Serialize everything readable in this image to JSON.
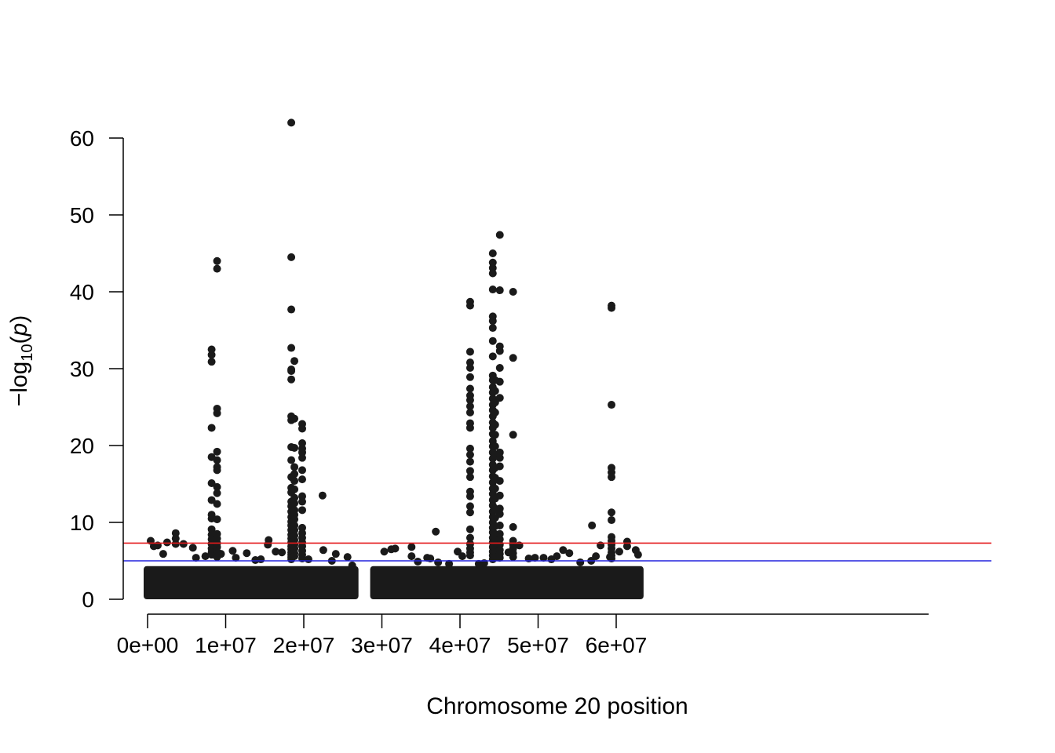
{
  "chart_data": {
    "type": "scatter",
    "xlabel": "Chromosome 20 position",
    "ylabel_main": "−log",
    "ylabel_sub": "10",
    "ylabel_open": "(",
    "ylabel_var": "p",
    "ylabel_close": ")",
    "xlim": [
      -1900000,
      64800000
    ],
    "ylim": [
      0,
      62
    ],
    "x_ticks": [
      {
        "value": 0,
        "label": "0e+00"
      },
      {
        "value": 10000000,
        "label": "1e+07"
      },
      {
        "value": 20000000,
        "label": "2e+07"
      },
      {
        "value": 30000000,
        "label": "3e+07"
      },
      {
        "value": 40000000,
        "label": "4e+07"
      },
      {
        "value": 50000000,
        "label": "5e+07"
      },
      {
        "value": 60000000,
        "label": "6e+07"
      }
    ],
    "y_ticks": [
      {
        "value": 0,
        "label": "0"
      },
      {
        "value": 10,
        "label": "10"
      },
      {
        "value": 20,
        "label": "20"
      },
      {
        "value": 30,
        "label": "30"
      },
      {
        "value": 40,
        "label": "40"
      },
      {
        "value": 50,
        "label": "50"
      },
      {
        "value": 60,
        "label": "60"
      }
    ],
    "threshold_lines": [
      {
        "y": 7.3,
        "color": "#e41a1c"
      },
      {
        "y": 5.0,
        "color": "#2222dd"
      }
    ],
    "point_color": "#1a1a1a",
    "grid": false,
    "background_band": {
      "segments": [
        [
          0,
          26500000
        ],
        [
          29000000,
          63000000
        ]
      ],
      "max_y": 3.8
    },
    "background_noise": [
      {
        "x": 3600000,
        "y": 8.6
      },
      {
        "x": 3600000,
        "y": 7.9
      },
      {
        "x": 3600000,
        "y": 7.2
      },
      {
        "x": 400000,
        "y": 7.6
      },
      {
        "x": 800000,
        "y": 6.9
      },
      {
        "x": 1300000,
        "y": 7.0
      },
      {
        "x": 2500000,
        "y": 7.4
      },
      {
        "x": 4600000,
        "y": 7.2
      },
      {
        "x": 5800000,
        "y": 6.7
      },
      {
        "x": 10900000,
        "y": 6.3
      },
      {
        "x": 12700000,
        "y": 6.0
      },
      {
        "x": 15500000,
        "y": 7.7
      },
      {
        "x": 15400000,
        "y": 7.1
      },
      {
        "x": 16400000,
        "y": 6.2
      },
      {
        "x": 17200000,
        "y": 6.1
      },
      {
        "x": 22500000,
        "y": 6.4
      },
      {
        "x": 24100000,
        "y": 5.9
      },
      {
        "x": 25600000,
        "y": 5.5
      },
      {
        "x": 30300000,
        "y": 6.2
      },
      {
        "x": 31200000,
        "y": 6.5
      },
      {
        "x": 31700000,
        "y": 6.6
      },
      {
        "x": 33800000,
        "y": 6.8
      },
      {
        "x": 33800000,
        "y": 5.6
      },
      {
        "x": 35800000,
        "y": 5.4
      },
      {
        "x": 36200000,
        "y": 5.3
      },
      {
        "x": 37200000,
        "y": 4.8
      },
      {
        "x": 39700000,
        "y": 6.2
      },
      {
        "x": 43100000,
        "y": 4.7
      },
      {
        "x": 47600000,
        "y": 7.0
      },
      {
        "x": 48800000,
        "y": 5.3
      },
      {
        "x": 50700000,
        "y": 5.4
      },
      {
        "x": 52400000,
        "y": 5.6
      },
      {
        "x": 53200000,
        "y": 6.4
      },
      {
        "x": 54000000,
        "y": 6.0
      },
      {
        "x": 55400000,
        "y": 4.8
      },
      {
        "x": 56800000,
        "y": 5.0
      },
      {
        "x": 57400000,
        "y": 5.6
      },
      {
        "x": 58000000,
        "y": 7.0
      },
      {
        "x": 61400000,
        "y": 7.5
      },
      {
        "x": 61400000,
        "y": 6.9
      },
      {
        "x": 62500000,
        "y": 6.4
      },
      {
        "x": 62800000,
        "y": 5.8
      },
      {
        "x": 2000000,
        "y": 5.9
      },
      {
        "x": 6200000,
        "y": 5.4
      },
      {
        "x": 7400000,
        "y": 5.6
      },
      {
        "x": 9400000,
        "y": 5.9
      },
      {
        "x": 11300000,
        "y": 5.4
      },
      {
        "x": 13800000,
        "y": 5.1
      },
      {
        "x": 14500000,
        "y": 5.2
      },
      {
        "x": 20600000,
        "y": 5.2
      },
      {
        "x": 23600000,
        "y": 5.0
      },
      {
        "x": 26200000,
        "y": 4.4
      },
      {
        "x": 34600000,
        "y": 4.9
      },
      {
        "x": 38600000,
        "y": 4.6
      },
      {
        "x": 40300000,
        "y": 5.6
      },
      {
        "x": 42400000,
        "y": 4.6
      },
      {
        "x": 46200000,
        "y": 6.1
      },
      {
        "x": 49600000,
        "y": 5.4
      },
      {
        "x": 51700000,
        "y": 5.2
      },
      {
        "x": 59200000,
        "y": 5.5
      },
      {
        "x": 60400000,
        "y": 6.2
      }
    ],
    "singletons": [
      {
        "x": 22400000,
        "y": 13.5
      },
      {
        "x": 36900000,
        "y": 8.8
      },
      {
        "x": 56900000,
        "y": 9.6
      }
    ],
    "peaks": [
      {
        "x": 8200000,
        "values": [
          32.5,
          31.8,
          30.9,
          22.3,
          18.5,
          15.1,
          12.9,
          11.0,
          10.5,
          9.1,
          8.4,
          7.8,
          7.2,
          6.6,
          6.1,
          5.8
        ]
      },
      {
        "x": 8900000,
        "values": [
          44.0,
          43.0,
          24.8,
          24.2,
          19.2,
          18.1,
          17.2,
          16.8,
          14.6,
          13.8,
          12.4,
          10.4,
          8.5,
          7.9,
          7.3,
          6.8,
          6.2,
          5.9,
          5.5
        ]
      },
      {
        "x": 18400000,
        "values": [
          62.0,
          44.5,
          37.7,
          32.7,
          29.9,
          29.7,
          28.6,
          23.8,
          23.3,
          19.8,
          18.1,
          15.9,
          14.5,
          13.9,
          12.7,
          12.1,
          11.4,
          10.7,
          10.1,
          9.6,
          9.0,
          8.4,
          7.9,
          7.4,
          6.9,
          6.5,
          6.1,
          5.8,
          5.5,
          5.2
        ]
      },
      {
        "x": 18800000,
        "values": [
          31.0,
          23.5,
          19.7,
          17.2,
          16.3,
          15.4,
          14.3,
          13.2,
          12.5,
          11.6,
          11.0,
          10.4,
          9.6,
          9.0,
          8.3,
          7.7,
          7.1,
          6.6,
          6.0,
          5.6
        ]
      },
      {
        "x": 19800000,
        "values": [
          22.8,
          22.2,
          20.3,
          19.6,
          19.1,
          18.4,
          16.8,
          15.6,
          13.4,
          12.7,
          11.6,
          9.3,
          8.6,
          8.0,
          7.4,
          6.9,
          6.3,
          5.8,
          5.3
        ]
      },
      {
        "x": 41300000,
        "values": [
          38.7,
          38.2,
          32.2,
          30.8,
          30.1,
          28.9,
          27.4,
          26.5,
          25.9,
          25.1,
          24.3,
          22.9,
          22.3,
          19.6,
          18.8,
          17.9,
          16.7,
          15.9,
          14.0,
          13.4,
          12.1,
          11.3,
          9.1,
          8.0,
          7.2,
          6.6,
          6.1,
          5.7
        ]
      },
      {
        "x": 44200000,
        "values": [
          45.0,
          43.8,
          43.1,
          42.4,
          40.3,
          36.8,
          36.2,
          35.3,
          33.6,
          31.6,
          29.1,
          28.5,
          27.6,
          26.9,
          26.1,
          25.3,
          24.6,
          23.8,
          23.0,
          22.3,
          21.5,
          20.6,
          19.9,
          19.1,
          18.3,
          17.5,
          16.8,
          16.0,
          15.2,
          14.4,
          13.7,
          12.9,
          12.2,
          11.4,
          10.7,
          10.0,
          9.3,
          8.7,
          8.0,
          7.4,
          6.8,
          6.2,
          5.7,
          5.2
        ]
      },
      {
        "x": 44500000,
        "values": [
          28.5,
          27.1,
          25.6,
          24.3,
          22.7,
          21.4,
          19.9,
          18.6,
          17.1,
          15.8,
          14.4,
          13.1,
          11.8,
          10.6,
          9.5,
          8.5,
          7.6,
          6.8,
          6.1,
          5.5
        ]
      },
      {
        "x": 45100000,
        "values": [
          47.4,
          40.2,
          32.9,
          32.3,
          30.1,
          28.3,
          26.2,
          19.1,
          18.4,
          17.3,
          15.4,
          13.5,
          11.8,
          11.1,
          9.6,
          8.5,
          7.8,
          7.1,
          6.4,
          5.9,
          5.4
        ]
      },
      {
        "x": 46800000,
        "values": [
          40.0,
          31.4,
          21.4,
          9.4,
          7.6,
          7.1,
          6.6,
          6.0,
          5.5
        ]
      },
      {
        "x": 59400000,
        "values": [
          38.2,
          37.9,
          25.3,
          17.1,
          16.5,
          15.9,
          11.3,
          10.3,
          8.1,
          7.6,
          7.1,
          6.6,
          6.1,
          5.7,
          5.3
        ]
      }
    ]
  }
}
